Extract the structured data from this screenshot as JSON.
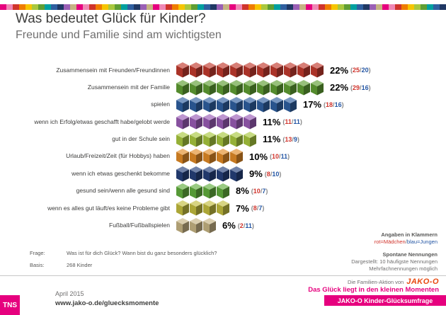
{
  "chart_data": {
    "type": "bar",
    "title": "Was bedeutet Glück für Kinder?",
    "subtitle": "Freunde und Familie sind am wichtigsten",
    "unit": "%",
    "percent_per_cube": 2,
    "legend_note": "Angaben in Klammern: rot=Mädchen/blau=Jungen",
    "categories": [
      "Zusammensein mit Freunden/Freundinnen",
      "Zusammensein mit der Familie",
      "spielen",
      "wenn ich Erfolg/etwas geschafft habe/gelobt werde",
      "gut in der Schule sein",
      "Urlaub/Freizeit/Zeit (für Hobbys) haben",
      "wenn ich etwas geschenkt bekomme",
      "gesund sein/wenn alle gesund sind",
      "wenn es alles gut läuft/es keine Probleme gibt",
      "Fußball/Fußballspielen"
    ],
    "values": [
      22,
      22,
      17,
      11,
      11,
      10,
      9,
      8,
      7,
      6
    ],
    "girls": [
      25,
      29,
      18,
      11,
      13,
      10,
      8,
      10,
      8,
      2
    ],
    "boys": [
      20,
      16,
      16,
      11,
      9,
      11,
      10,
      7,
      7,
      11
    ],
    "bar_colors": [
      "#c13a2e",
      "#5f9e33",
      "#2f5fa0",
      "#995cb5",
      "#a9c83e",
      "#e28b26",
      "#25407a",
      "#62ae3e",
      "#c3bd3f",
      "#c6b383"
    ]
  },
  "annotations": {
    "klammern_title": "Angaben in Klammern",
    "legend_girls": "rot=Mädchen",
    "legend_sep": "/",
    "legend_boys": "blau=Jungen",
    "spontan_title": "Spontane Nennungen",
    "spontan_line1": "Dargestellt: 10 häufigste Nennungen",
    "spontan_line2": "Mehrfachnennungen möglich"
  },
  "question": {
    "frage_label": "Frage:",
    "frage_text": "Was ist für dich Glück? Wann bist du ganz besonders glücklich?",
    "basis_label": "Basis:",
    "basis_text": "268 Kinder"
  },
  "footer": {
    "tns": "TNS",
    "date": "April 2015",
    "url": "www.jako-o.de/gluecksmomente",
    "family_action": "Die Familien-Aktion von",
    "jako_logo": "JAKO-O",
    "tagline": "Das Glück liegt in den kleinen Momenten",
    "banner": "JAKO-O Kinder-Glücksumfrage"
  },
  "colors": {
    "accent_magenta": "#e6007e",
    "girls_red": "#d0342c",
    "boys_blue": "#2456a4",
    "jako_orange": "#e8490f",
    "paren_gray": "#878787"
  },
  "decorative_strip": {
    "colors": [
      "#e6007e",
      "#ef87b5",
      "#d0342c",
      "#ef7d00",
      "#f6c500",
      "#a9c83e",
      "#5f9e33",
      "#00a0a0",
      "#2f5fa0",
      "#1f3864",
      "#9a5fb5",
      "#c6b383"
    ]
  }
}
